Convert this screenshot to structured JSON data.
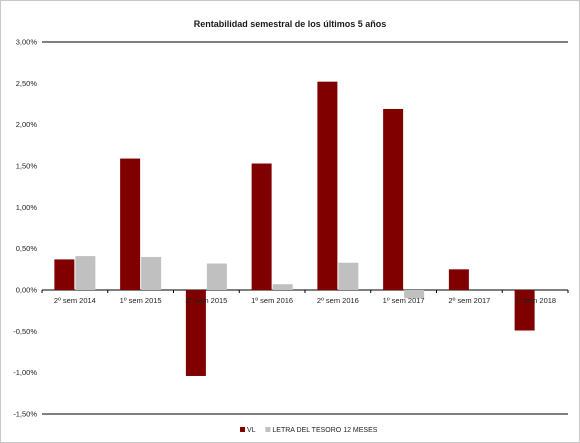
{
  "chart_data": {
    "type": "bar",
    "title": "Rentabilidad semestral de los últimos 5 años",
    "categories": [
      "2º sem 2014",
      "1º sem 2015",
      "2º sem 2015",
      "1º sem 2016",
      "2º sem 2016",
      "1º sem 2017",
      "2º sem 2017",
      "1º sem 2018"
    ],
    "series": [
      {
        "name": "VL",
        "color": "#800000",
        "values": [
          0.37,
          1.59,
          -1.04,
          1.53,
          2.52,
          2.19,
          0.25,
          -0.49
        ]
      },
      {
        "name": "LETRA DEL TESORO 12 MESES",
        "color": "#c0c0c0",
        "values": [
          0.41,
          0.4,
          0.32,
          0.07,
          0.33,
          -0.1,
          null,
          null
        ]
      }
    ],
    "yticks": [
      "3,00%",
      "2,50%",
      "2,00%",
      "1,50%",
      "1,00%",
      "0,50%",
      "0,00%",
      "-0,50%",
      "-1,00%",
      "-1,50%"
    ],
    "ylim": [
      -1.5,
      3.0
    ],
    "grid": false,
    "legend_position": "bottom-center"
  }
}
